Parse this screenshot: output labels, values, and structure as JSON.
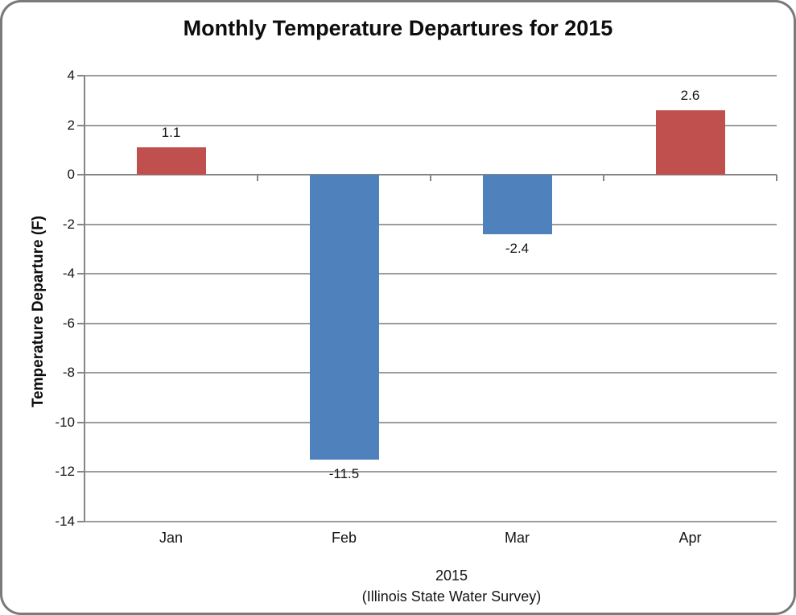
{
  "frame": {
    "background_color": "#FFFFFF",
    "border_color": "#7A7A7A"
  },
  "chart_data": {
    "type": "bar",
    "title": "Monthly Temperature Departures for 2015",
    "ylabel": "Temperature Departure (F)",
    "xlabel_line1": "2015",
    "xlabel_line2": "(Illinois State Water Survey)",
    "categories": [
      "Jan",
      "Feb",
      "Mar",
      "Apr"
    ],
    "values": [
      1.1,
      -11.5,
      -2.4,
      2.6
    ],
    "value_labels": [
      "1.1",
      "-11.5",
      "-2.4",
      "2.6"
    ],
    "bar_colors": [
      "#C0504D",
      "#4F81BD",
      "#4F81BD",
      "#C0504D"
    ],
    "positive_color": "#C0504D",
    "negative_color": "#4F81BD",
    "ylim": [
      -14,
      4
    ],
    "ytick_step": 2,
    "yticks": [
      4,
      2,
      0,
      -2,
      -4,
      -6,
      -8,
      -10,
      -12,
      -14
    ],
    "grid": true,
    "gridline_color": "#9C9C9C",
    "axis_color": "#858585",
    "text_color": "#141414",
    "legend": "none",
    "series": [
      {
        "name": "Temperature Departure",
        "values": [
          1.1,
          -11.5,
          -2.4,
          2.6
        ]
      }
    ]
  }
}
